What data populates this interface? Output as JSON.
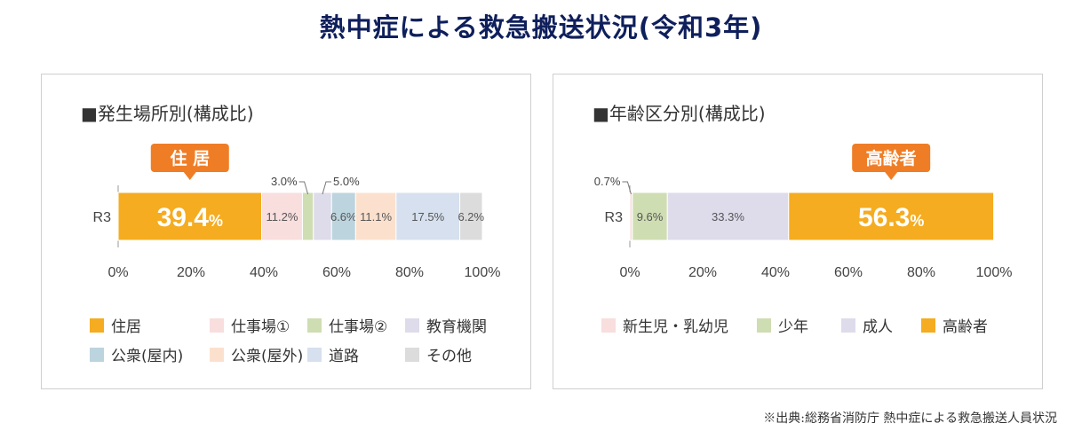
{
  "page": {
    "title": "熱中症による救急搬送状況(令和3年)",
    "source": "※出典:総務省消防庁 熱中症による救急搬送人員状況"
  },
  "colors": {
    "orange": "#f5ac20",
    "callout": "#ef7d26",
    "pink": "#f9dede",
    "green": "#cfddb2",
    "lavender": "#dedbeb",
    "blue_gray": "#bcd4de",
    "peach": "#fbe1cd",
    "light_blue": "#d6e0ee",
    "gray": "#dcdcdc"
  },
  "chart_data": [
    {
      "type": "bar",
      "orientation": "horizontal-stacked",
      "title": "■発生場所別(構成比)",
      "categories": [
        "R3"
      ],
      "series": [
        {
          "name": "住居",
          "values": [
            39.4
          ],
          "label": "39.4",
          "unit": "%",
          "color": "#f5ac20",
          "big": true
        },
        {
          "name": "仕事場①",
          "values": [
            11.2
          ],
          "label": "11.2%",
          "color": "#f9dede"
        },
        {
          "name": "仕事場②",
          "values": [
            3.0
          ],
          "label": "3.0%",
          "color": "#cfddb2",
          "external": true
        },
        {
          "name": "教育機関",
          "values": [
            5.0
          ],
          "label": "5.0%",
          "color": "#dedbeb",
          "external": true
        },
        {
          "name": "公衆(屋内)",
          "values": [
            6.6
          ],
          "label": "6.6%",
          "color": "#bcd4de"
        },
        {
          "name": "公衆(屋外)",
          "values": [
            11.1
          ],
          "label": "11.1%",
          "color": "#fbe1cd"
        },
        {
          "name": "道路",
          "values": [
            17.5
          ],
          "label": "17.5%",
          "color": "#d6e0ee"
        },
        {
          "name": "その他",
          "values": [
            6.2
          ],
          "label": "6.2%",
          "color": "#dcdcdc"
        }
      ],
      "xlim": [
        0,
        100
      ],
      "xticks": [
        "0%",
        "20%",
        "40%",
        "60%",
        "80%",
        "100%"
      ],
      "callout": "住 居",
      "legend_rows": [
        [
          "住居",
          "仕事場①",
          "仕事場②",
          "教育機関"
        ],
        [
          "公衆(屋内)",
          "公衆(屋外)",
          "道路",
          "その他"
        ]
      ]
    },
    {
      "type": "bar",
      "orientation": "horizontal-stacked",
      "title": "■年齢区分別(構成比)",
      "categories": [
        "R3"
      ],
      "series": [
        {
          "name": "新生児・乳幼児",
          "values": [
            0.7
          ],
          "label": "0.7%",
          "color": "#f9dede",
          "external": true
        },
        {
          "name": "少年",
          "values": [
            9.6
          ],
          "label": "9.6%",
          "color": "#cfddb2"
        },
        {
          "name": "成人",
          "values": [
            33.3
          ],
          "label": "33.3%",
          "color": "#dedbeb"
        },
        {
          "name": "高齢者",
          "values": [
            56.3
          ],
          "label": "56.3",
          "unit": "%",
          "color": "#f5ac20",
          "big": true
        }
      ],
      "xlim": [
        0,
        100
      ],
      "xticks": [
        "0%",
        "20%",
        "40%",
        "60%",
        "80%",
        "100%"
      ],
      "callout": "高齢者",
      "legend_rows": [
        [
          "新生児・乳幼児",
          "少年",
          "成人",
          "高齢者"
        ]
      ]
    }
  ]
}
